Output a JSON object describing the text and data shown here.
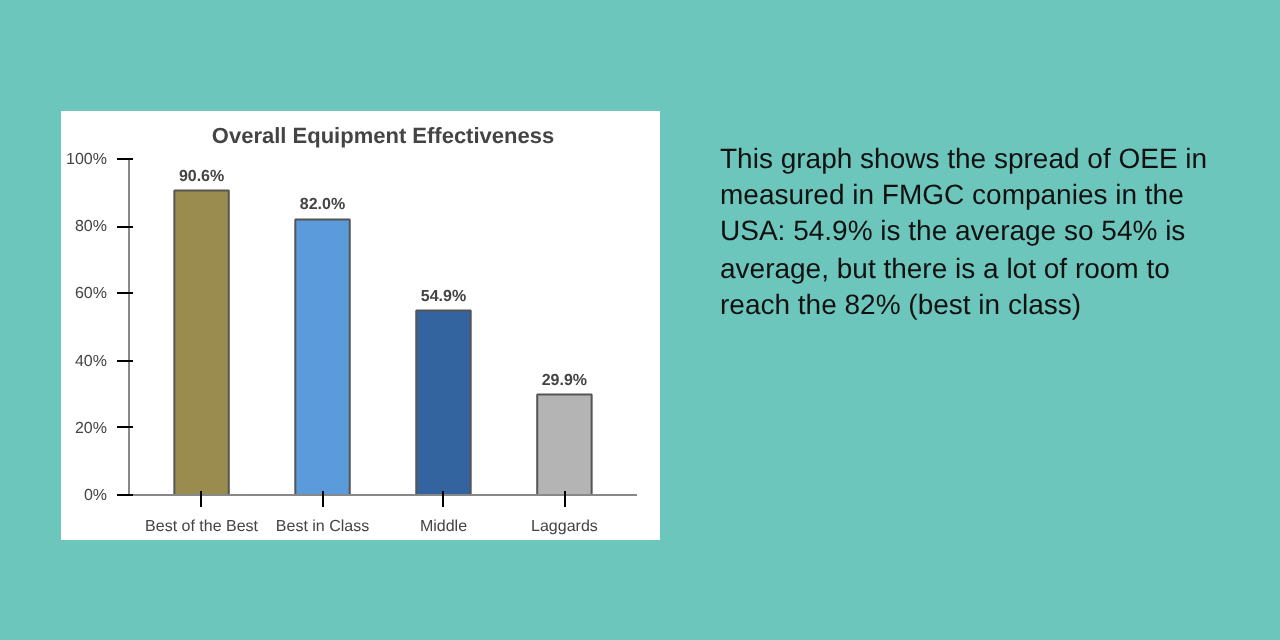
{
  "chart_data": {
    "type": "bar",
    "title": "Overall Equipment Effectiveness",
    "categories": [
      "Best of the Best",
      "Best in Class",
      "Middle",
      "Laggards"
    ],
    "values": [
      90.6,
      82.0,
      54.9,
      29.9
    ],
    "colors": [
      "#9a8c4e",
      "#5b9bdb",
      "#3464a0",
      "#b4b4b4"
    ],
    "value_labels": [
      "90.6%",
      "82.0%",
      "54.9%",
      "29.9%"
    ],
    "ylim": [
      0,
      100
    ],
    "yticks": [
      {
        "value": 0,
        "label": "0%"
      },
      {
        "value": 20,
        "label": "20%"
      },
      {
        "value": 40,
        "label": "40%"
      },
      {
        "value": 60,
        "label": "60%"
      },
      {
        "value": 80,
        "label": "80%"
      },
      {
        "value": 100,
        "label": "100%"
      }
    ],
    "grid": false,
    "annotations": [
      "This graph shows the spread of OEE in measured in  FMGC companies in the USA: 54.9% is the average so 54% is average, but there is a lot of room to reach the 82%  (best in class)"
    ]
  }
}
